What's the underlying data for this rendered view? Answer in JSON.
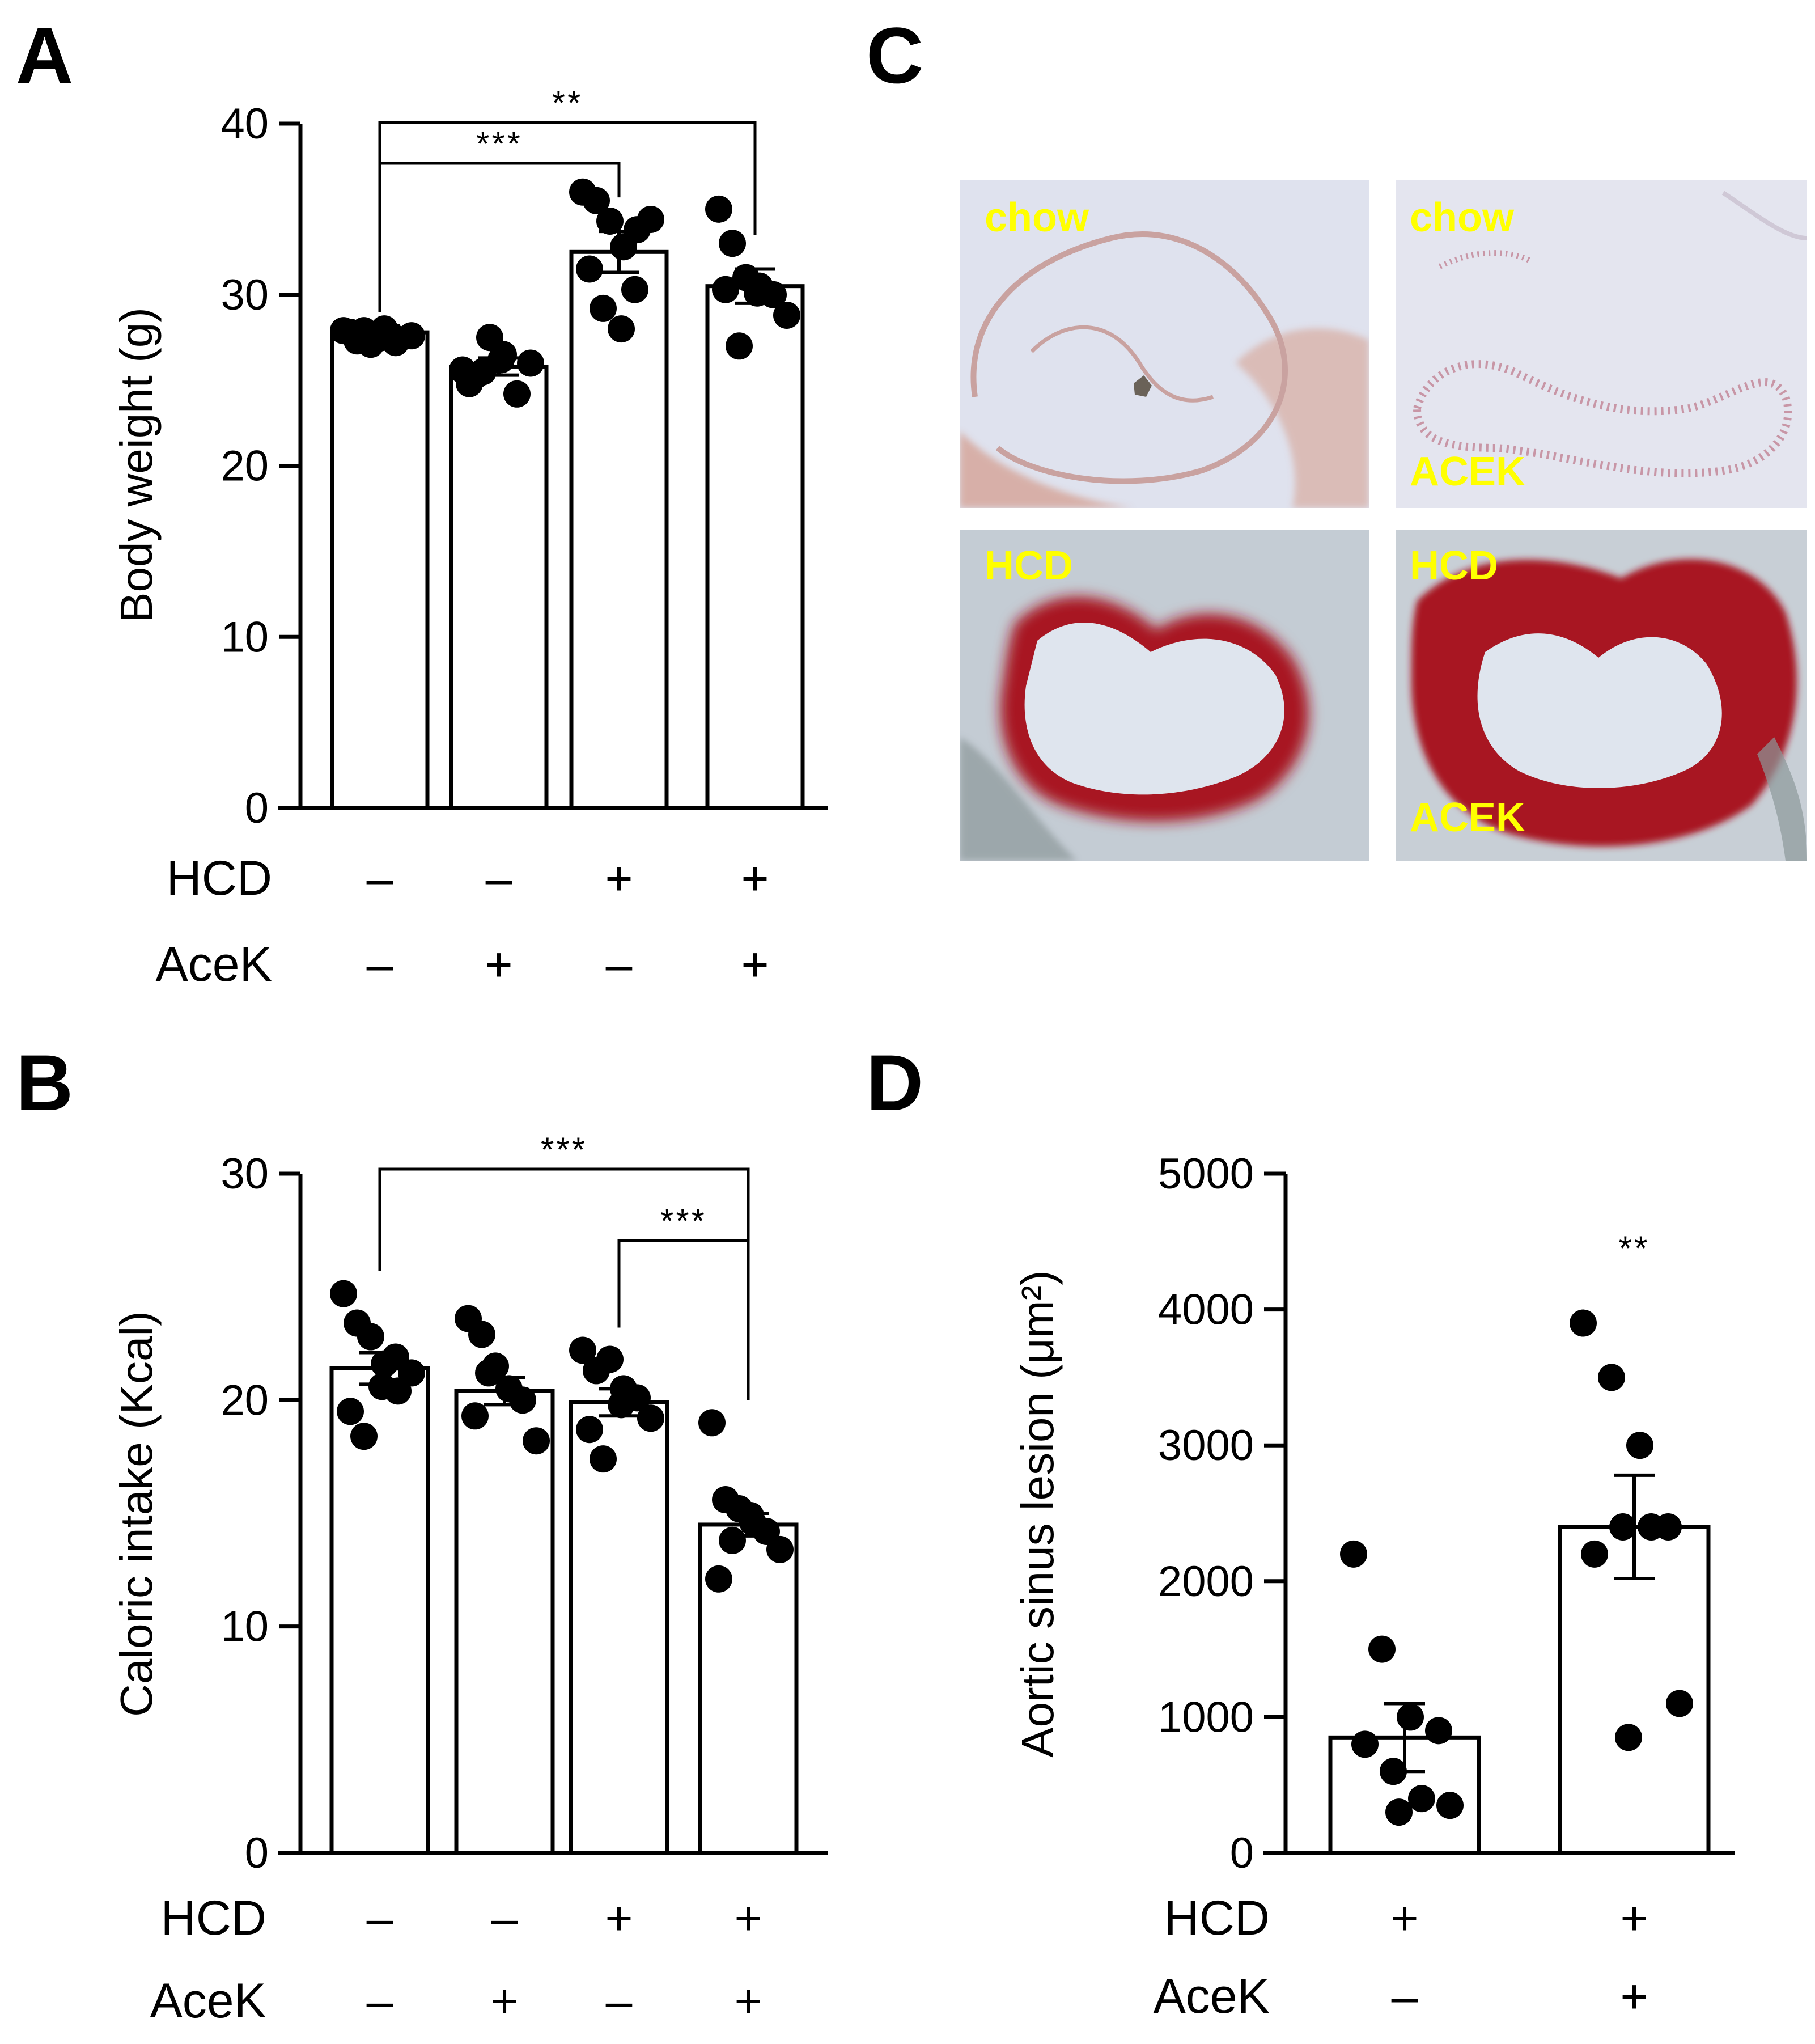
{
  "panels": {
    "A": {
      "letter": "A"
    },
    "B": {
      "letter": "B"
    },
    "C": {
      "letter": "C"
    },
    "D": {
      "letter": "D"
    }
  },
  "chart_data": [
    {
      "id": "A",
      "type": "bar",
      "ylabel": "Body weight (g)",
      "ylim": [
        0,
        40
      ],
      "yticks": [
        "0",
        "10",
        "20",
        "30",
        "40"
      ],
      "categories": [
        "HCD– AceK–",
        "HCD– AceK+",
        "HCD+ AceK–",
        "HCD+ AceK+"
      ],
      "values": [
        27.8,
        25.8,
        32.5,
        30.5
      ],
      "sem": [
        0.4,
        0.5,
        1.2,
        1.0
      ],
      "points": [
        [
          27.9,
          27.3,
          27.1,
          28.0,
          27.4,
          27.6,
          27.8,
          27.9,
          27.5,
          27.2
        ],
        [
          25.6,
          25.3,
          27.5,
          26.5,
          24.2,
          26.0,
          24.8,
          25.5,
          26.2
        ],
        [
          36.0,
          35.5,
          34.3,
          32.8,
          33.8,
          34.4,
          31.5,
          29.2,
          28.0,
          30.3
        ],
        [
          35.0,
          33.0,
          31.0,
          30.5,
          30.0,
          28.8,
          30.3,
          27.0,
          30.1
        ]
      ],
      "row_labels": [
        "HCD",
        "AceK"
      ],
      "rows": [
        [
          "–",
          "–",
          "+",
          "+"
        ],
        [
          "–",
          "+",
          "–",
          "+"
        ]
      ],
      "significance": [
        {
          "from": 0,
          "to": 2,
          "label": "***"
        },
        {
          "from": 0,
          "to": 3,
          "label": "**"
        }
      ]
    },
    {
      "id": "B",
      "type": "bar",
      "ylabel": "Caloric intake (Kcal)",
      "ylim": [
        0,
        30
      ],
      "yticks": [
        "0",
        "10",
        "20",
        "30"
      ],
      "categories": [
        "HCD– AceK–",
        "HCD– AceK+",
        "HCD+ AceK–",
        "HCD+ AceK+"
      ],
      "values": [
        21.4,
        20.4,
        19.9,
        14.5
      ],
      "sem": [
        0.7,
        0.6,
        0.6,
        0.5
      ],
      "points": [
        [
          24.7,
          23.4,
          22.8,
          21.6,
          20.4,
          21.2,
          19.5,
          18.4,
          20.6,
          21.9
        ],
        [
          23.6,
          22.9,
          21.5,
          20.5,
          20.0,
          18.2,
          19.3,
          21.2
        ],
        [
          22.2,
          21.3,
          21.8,
          20.5,
          20.1,
          19.2,
          18.7,
          17.4,
          19.8
        ],
        [
          19.0,
          15.6,
          15.2,
          14.6,
          14.2,
          13.4,
          12.1,
          13.8,
          14.9
        ]
      ],
      "row_labels": [
        "HCD",
        "AceK"
      ],
      "rows": [
        [
          "–",
          "–",
          "+",
          "+"
        ],
        [
          "–",
          "+",
          "–",
          "+"
        ]
      ],
      "significance": [
        {
          "from": 0,
          "to": 3,
          "label": "***"
        },
        {
          "from": 2,
          "to": 3,
          "label": "***"
        }
      ]
    },
    {
      "id": "D",
      "type": "bar",
      "ylabel": "Aortic sinus lesion (μm²)",
      "ylim": [
        0,
        5000
      ],
      "yticks": [
        "0",
        "1000",
        "2000",
        "3000",
        "4000",
        "5000"
      ],
      "categories": [
        "HCD+ AceK–",
        "HCD+ AceK+"
      ],
      "values": [
        850,
        2400
      ],
      "sem": [
        250,
        380
      ],
      "points": [
        [
          2200,
          1500,
          1000,
          900,
          800,
          600,
          400,
          350,
          300
        ],
        [
          3900,
          3500,
          3000,
          2400,
          2200,
          2400,
          2400,
          1100,
          850
        ]
      ],
      "row_labels": [
        "HCD",
        "AceK"
      ],
      "rows": [
        [
          "+",
          "+"
        ],
        [
          "–",
          "+"
        ]
      ],
      "significance": [
        {
          "over": 1,
          "label": "**"
        }
      ]
    }
  ],
  "micrographs": {
    "tiles": [
      {
        "id": "chow-control",
        "label_top": "chow",
        "label_bottom": ""
      },
      {
        "id": "chow-acek",
        "label_top": "chow",
        "label_bottom": "ACEK"
      },
      {
        "id": "hcd-control",
        "label_top": "HCD",
        "label_bottom": ""
      },
      {
        "id": "hcd-acek",
        "label_top": "HCD",
        "label_bottom": "ACEK"
      }
    ],
    "colors": {
      "background": "#dfe2ee",
      "tissue": "#d6a79c",
      "lesion": "#a81524",
      "text": "#ffff00"
    }
  }
}
